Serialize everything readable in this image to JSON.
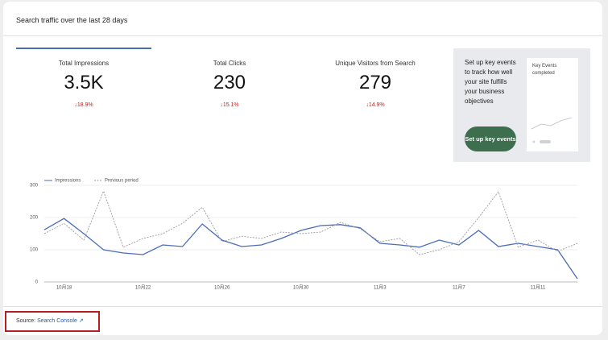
{
  "header": {
    "title": "Search traffic over the last 28 days"
  },
  "metrics": [
    {
      "label": "Total Impressions",
      "value": "3.5K",
      "change": "18.9%"
    },
    {
      "label": "Total Clicks",
      "value": "230",
      "change": "15.1%"
    },
    {
      "label": "Unique Visitors from Search",
      "value": "279",
      "change": "14.9%"
    }
  ],
  "promo": {
    "text": "Set up key events to track how well your site fulfills your business objectives",
    "button": "Set up key events",
    "preview_label": "Key Events completed"
  },
  "chart_data": {
    "type": "line",
    "categories": [
      null,
      "10月18",
      null,
      null,
      null,
      "10月22",
      null,
      null,
      null,
      "10月26",
      null,
      null,
      null,
      "10月30",
      null,
      null,
      null,
      "11月3",
      null,
      null,
      null,
      "11月7",
      null,
      null,
      null,
      "11月11",
      null,
      null
    ],
    "series": [
      {
        "name": "Impressions",
        "color": "#4a6cb8",
        "values": [
          162,
          197,
          150,
          100,
          90,
          85,
          115,
          110,
          180,
          130,
          110,
          115,
          135,
          160,
          175,
          178,
          168,
          120,
          115,
          108,
          130,
          115,
          160,
          110,
          120,
          110,
          100,
          10
        ]
      },
      {
        "name": "Previous period",
        "color": "#9a9a9a",
        "values": [
          150,
          182,
          130,
          282,
          108,
          135,
          150,
          182,
          232,
          125,
          142,
          135,
          155,
          150,
          155,
          185,
          165,
          125,
          135,
          85,
          100,
          125,
          200,
          280,
          108,
          130,
          95,
          120
        ]
      }
    ],
    "ylim": [
      0,
      300
    ],
    "yticks": [
      0,
      100,
      200,
      300
    ],
    "grid": true
  },
  "footer": {
    "source_label": "Source:",
    "source_link": "Search Console"
  }
}
